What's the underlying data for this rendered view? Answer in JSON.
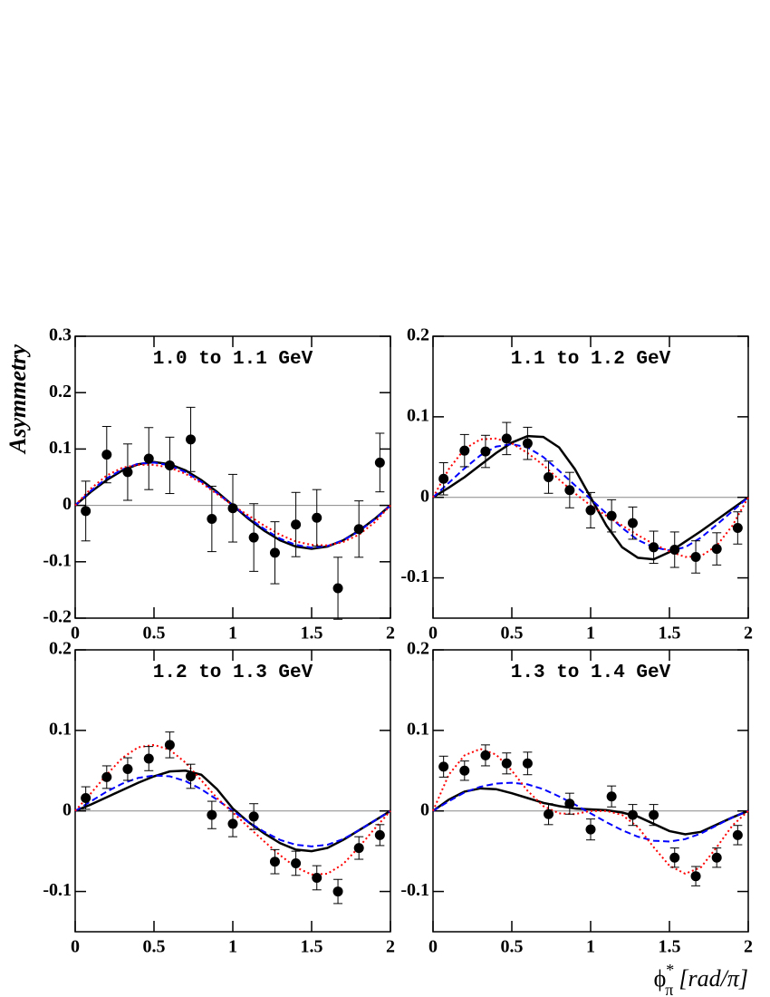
{
  "chart_data": [
    {
      "type": "line",
      "title": "1.0 to 1.1 GeV",
      "y_label": "Asymmetry",
      "xlim": [
        0,
        2
      ],
      "xticks": [
        0,
        0.5,
        1,
        1.5,
        2
      ],
      "ylim": [
        -0.2,
        0.3
      ],
      "yticks": [
        -0.2,
        -0.1,
        0,
        0.1,
        0.2,
        0.3
      ],
      "points": {
        "color": "#000000",
        "x": [
          0.067,
          0.2,
          0.333,
          0.467,
          0.6,
          0.733,
          0.867,
          1.0,
          1.133,
          1.267,
          1.4,
          1.533,
          1.667,
          1.8,
          1.933
        ],
        "values": [
          -0.01,
          0.09,
          0.059,
          0.083,
          0.071,
          0.117,
          -0.024,
          -0.005,
          -0.057,
          -0.084,
          -0.034,
          -0.022,
          -0.147,
          -0.042,
          0.076
        ],
        "errors": [
          0.053,
          0.05,
          0.05,
          0.055,
          0.05,
          0.057,
          0.058,
          0.06,
          0.06,
          0.055,
          0.057,
          0.05,
          0.055,
          0.05,
          0.052
        ]
      },
      "curve_x": [
        0,
        0.1,
        0.2,
        0.3,
        0.4,
        0.5,
        0.6,
        0.7,
        0.8,
        0.9,
        1.0,
        1.1,
        1.2,
        1.3,
        1.4,
        1.5,
        1.6,
        1.7,
        1.8,
        1.9,
        2.0
      ],
      "curves": [
        {
          "color": "#000000",
          "style": "solid",
          "values": [
            0,
            0.024,
            0.045,
            0.062,
            0.073,
            0.077,
            0.073,
            0.062,
            0.045,
            0.024,
            0,
            -0.024,
            -0.045,
            -0.062,
            -0.073,
            -0.077,
            -0.073,
            -0.062,
            -0.045,
            -0.024,
            0
          ]
        },
        {
          "color": "#0000ff",
          "style": "dashed",
          "values": [
            0,
            0.026,
            0.048,
            0.064,
            0.074,
            0.076,
            0.071,
            0.059,
            0.042,
            0.022,
            0,
            -0.022,
            -0.042,
            -0.059,
            -0.07,
            -0.075,
            -0.072,
            -0.062,
            -0.046,
            -0.025,
            0
          ]
        },
        {
          "color": "#ff0000",
          "style": "dotted",
          "values": [
            0,
            0.03,
            0.053,
            0.067,
            0.072,
            0.072,
            0.067,
            0.056,
            0.04,
            0.02,
            0,
            -0.018,
            -0.036,
            -0.052,
            -0.064,
            -0.07,
            -0.071,
            -0.065,
            -0.052,
            -0.03,
            0
          ]
        }
      ]
    },
    {
      "type": "line",
      "title": "1.1 to 1.2 GeV",
      "xlim": [
        0,
        2
      ],
      "xticks": [
        0,
        0.5,
        1,
        1.5,
        2
      ],
      "ylim": [
        -0.15,
        0.2
      ],
      "yticks": [
        -0.1,
        0,
        0.1,
        0.2
      ],
      "points": {
        "color": "#000000",
        "x": [
          0.067,
          0.2,
          0.333,
          0.467,
          0.6,
          0.733,
          0.867,
          1.0,
          1.133,
          1.267,
          1.4,
          1.533,
          1.667,
          1.8,
          1.933
        ],
        "values": [
          0.023,
          0.058,
          0.057,
          0.073,
          0.067,
          0.025,
          0.009,
          -0.016,
          -0.023,
          -0.032,
          -0.062,
          -0.065,
          -0.074,
          -0.064,
          -0.038
        ],
        "errors": [
          0.02,
          0.02,
          0.02,
          0.02,
          0.02,
          0.02,
          0.022,
          0.022,
          0.02,
          0.02,
          0.02,
          0.022,
          0.02,
          0.02,
          0.02
        ]
      },
      "curve_x": [
        0,
        0.1,
        0.2,
        0.3,
        0.4,
        0.5,
        0.6,
        0.7,
        0.8,
        0.9,
        1.0,
        1.1,
        1.2,
        1.3,
        1.4,
        1.5,
        1.6,
        1.7,
        1.8,
        1.9,
        2.0
      ],
      "curves": [
        {
          "color": "#000000",
          "style": "solid",
          "values": [
            0,
            0.012,
            0.025,
            0.04,
            0.055,
            0.068,
            0.076,
            0.075,
            0.062,
            0.035,
            0,
            -0.035,
            -0.062,
            -0.075,
            -0.077,
            -0.068,
            -0.055,
            -0.042,
            -0.028,
            -0.014,
            0
          ]
        },
        {
          "color": "#0000ff",
          "style": "dashed",
          "values": [
            0,
            0.018,
            0.036,
            0.052,
            0.063,
            0.066,
            0.062,
            0.05,
            0.033,
            0.015,
            -0.002,
            -0.02,
            -0.038,
            -0.053,
            -0.062,
            -0.066,
            -0.062,
            -0.05,
            -0.034,
            -0.017,
            0
          ]
        },
        {
          "color": "#ff0000",
          "style": "dotted",
          "values": [
            0,
            0.035,
            0.06,
            0.072,
            0.073,
            0.067,
            0.055,
            0.04,
            0.022,
            0.005,
            -0.01,
            -0.023,
            -0.035,
            -0.047,
            -0.058,
            -0.067,
            -0.074,
            -0.073,
            -0.06,
            -0.035,
            0
          ]
        }
      ]
    },
    {
      "type": "line",
      "title": "1.2 to 1.3 GeV",
      "xlim": [
        0,
        2
      ],
      "xticks": [
        0,
        0.5,
        1,
        1.5,
        2
      ],
      "ylim": [
        -0.15,
        0.2
      ],
      "yticks": [
        -0.1,
        0,
        0.1,
        0.2
      ],
      "points": {
        "color": "#000000",
        "x": [
          0.067,
          0.2,
          0.333,
          0.467,
          0.6,
          0.733,
          0.867,
          1.0,
          1.133,
          1.267,
          1.4,
          1.533,
          1.667,
          1.8,
          1.933
        ],
        "values": [
          0.016,
          0.042,
          0.052,
          0.065,
          0.082,
          0.043,
          -0.005,
          -0.016,
          -0.007,
          -0.063,
          -0.065,
          -0.083,
          -0.1,
          -0.046,
          -0.03
        ],
        "errors": [
          0.014,
          0.014,
          0.014,
          0.015,
          0.016,
          0.015,
          0.017,
          0.016,
          0.016,
          0.015,
          0.015,
          0.015,
          0.015,
          0.014,
          0.013
        ]
      },
      "curve_x": [
        0,
        0.1,
        0.2,
        0.3,
        0.4,
        0.5,
        0.6,
        0.7,
        0.8,
        0.9,
        1.0,
        1.1,
        1.2,
        1.3,
        1.4,
        1.5,
        1.6,
        1.7,
        1.8,
        1.9,
        2.0
      ],
      "curves": [
        {
          "color": "#000000",
          "style": "solid",
          "values": [
            0,
            0.008,
            0.017,
            0.026,
            0.035,
            0.043,
            0.049,
            0.05,
            0.045,
            0.027,
            0.003,
            -0.014,
            -0.028,
            -0.04,
            -0.048,
            -0.05,
            -0.046,
            -0.036,
            -0.024,
            -0.012,
            0
          ]
        },
        {
          "color": "#0000ff",
          "style": "dashed",
          "values": [
            0,
            0.012,
            0.024,
            0.034,
            0.041,
            0.044,
            0.043,
            0.037,
            0.027,
            0.014,
            0,
            -0.014,
            -0.026,
            -0.036,
            -0.042,
            -0.044,
            -0.042,
            -0.035,
            -0.024,
            -0.012,
            0
          ]
        },
        {
          "color": "#ff0000",
          "style": "dotted",
          "values": [
            0,
            0.022,
            0.045,
            0.066,
            0.079,
            0.082,
            0.076,
            0.06,
            0.038,
            0.016,
            -0.002,
            -0.02,
            -0.038,
            -0.055,
            -0.07,
            -0.079,
            -0.078,
            -0.066,
            -0.045,
            -0.022,
            0
          ]
        }
      ]
    },
    {
      "type": "line",
      "title": "1.3 to 1.4 GeV",
      "x_label": {
        "symbol": "ϕ",
        "superscript": "*",
        "subscript": "π",
        "unit": "[rad/π]"
      },
      "xlim": [
        0,
        2
      ],
      "xticks": [
        0,
        0.5,
        1,
        1.5,
        2
      ],
      "ylim": [
        -0.15,
        0.2
      ],
      "yticks": [
        -0.1,
        0,
        0.1,
        0.2
      ],
      "points": {
        "color": "#000000",
        "x": [
          0.067,
          0.2,
          0.333,
          0.467,
          0.6,
          0.733,
          0.867,
          1.0,
          1.133,
          1.267,
          1.4,
          1.533,
          1.667,
          1.8,
          1.933
        ],
        "values": [
          0.055,
          0.05,
          0.069,
          0.059,
          0.059,
          -0.004,
          0.009,
          -0.023,
          0.018,
          -0.005,
          -0.005,
          -0.058,
          -0.081,
          -0.058,
          -0.03
        ],
        "errors": [
          0.013,
          0.012,
          0.013,
          0.013,
          0.014,
          0.013,
          0.013,
          0.013,
          0.013,
          0.013,
          0.013,
          0.012,
          0.012,
          0.012,
          0.012
        ]
      },
      "curve_x": [
        0,
        0.1,
        0.2,
        0.3,
        0.4,
        0.5,
        0.6,
        0.7,
        0.8,
        0.9,
        1.0,
        1.1,
        1.2,
        1.3,
        1.4,
        1.5,
        1.6,
        1.7,
        1.8,
        1.9,
        2.0
      ],
      "curves": [
        {
          "color": "#000000",
          "style": "solid",
          "values": [
            0,
            0.014,
            0.024,
            0.028,
            0.027,
            0.022,
            0.016,
            0.01,
            0.006,
            0.003,
            0.002,
            0.001,
            -0.002,
            -0.007,
            -0.016,
            -0.025,
            -0.029,
            -0.026,
            -0.017,
            -0.008,
            0
          ]
        },
        {
          "color": "#0000ff",
          "style": "dashed",
          "values": [
            0,
            0.012,
            0.023,
            0.03,
            0.034,
            0.035,
            0.033,
            0.027,
            0.018,
            0.008,
            -0.003,
            -0.014,
            -0.024,
            -0.032,
            -0.037,
            -0.038,
            -0.035,
            -0.028,
            -0.018,
            -0.008,
            0
          ]
        },
        {
          "color": "#ff0000",
          "style": "dotted",
          "values": [
            0,
            0.045,
            0.069,
            0.077,
            0.07,
            0.05,
            0.025,
            0.006,
            -0.003,
            -0.004,
            0,
            0,
            -0.005,
            -0.02,
            -0.045,
            -0.068,
            -0.078,
            -0.07,
            -0.045,
            -0.018,
            0
          ]
        }
      ]
    }
  ]
}
